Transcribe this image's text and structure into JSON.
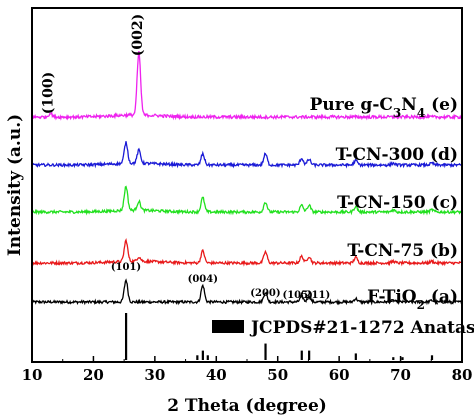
{
  "chart_data": {
    "type": "line",
    "xlabel": "2 Theta (degree)",
    "ylabel": "Intensity (a.u.)",
    "xlim": [
      10,
      80
    ],
    "x_ticks": [
      10,
      20,
      30,
      40,
      50,
      60,
      70,
      80
    ],
    "y_ticks_shown": false,
    "grid": false,
    "series": [
      {
        "name": "F-TiO2 (a)",
        "label_main": "F-TiO",
        "label_sub": "2",
        "label_tail": " (a)",
        "color": "#000000",
        "peaks": [
          [
            25.3,
            1.0
          ],
          [
            37.8,
            0.75
          ],
          [
            48.0,
            0.42
          ],
          [
            53.9,
            0.25
          ],
          [
            55.1,
            0.25
          ],
          [
            62.7,
            0.15
          ],
          [
            68.8,
            0.07
          ],
          [
            75.1,
            0.07
          ]
        ]
      },
      {
        "name": "T-CN-75 (b)",
        "label_main": "T-CN-75 (b)",
        "color": "#e8191a",
        "peaks": [
          [
            25.3,
            0.95
          ],
          [
            27.4,
            0.2
          ],
          [
            37.8,
            0.55
          ],
          [
            48.0,
            0.5
          ],
          [
            53.9,
            0.3
          ],
          [
            55.1,
            0.3
          ],
          [
            62.7,
            0.25
          ],
          [
            68.8,
            0.08
          ],
          [
            75.1,
            0.08
          ]
        ]
      },
      {
        "name": "T-CN-150 (c)",
        "label_main": "T-CN-150 (c)",
        "color": "#22e01f",
        "peaks": [
          [
            25.3,
            1.1
          ],
          [
            27.4,
            0.4
          ],
          [
            37.8,
            0.65
          ],
          [
            48.0,
            0.45
          ],
          [
            53.9,
            0.3
          ],
          [
            55.1,
            0.3
          ],
          [
            62.7,
            0.25
          ],
          [
            68.8,
            0.1
          ],
          [
            75.1,
            0.1
          ]
        ]
      },
      {
        "name": "T-CN-300 (d)",
        "label_main": "T-CN-300 (d)",
        "color": "#1a1ad6",
        "peaks": [
          [
            25.3,
            0.95
          ],
          [
            27.4,
            0.6
          ],
          [
            37.8,
            0.5
          ],
          [
            48.0,
            0.5
          ],
          [
            53.9,
            0.3
          ],
          [
            55.1,
            0.25
          ],
          [
            62.7,
            0.2
          ],
          [
            68.8,
            0.08
          ],
          [
            75.1,
            0.08
          ]
        ]
      },
      {
        "name": "Pure g-C3N4 (e)",
        "label_main": "Pure g-C",
        "label_sub": "3",
        "label_mid": "N",
        "label_sub2": "4",
        "label_tail": " (e)",
        "color": "#ee22ee",
        "peaks": [
          [
            13.0,
            0.15
          ],
          [
            27.4,
            2.5
          ]
        ]
      }
    ],
    "reference": {
      "name": "JCPDS#21-1272 Anatase",
      "lines": [
        [
          25.3,
          1.0
        ],
        [
          36.9,
          0.1
        ],
        [
          37.8,
          0.2
        ],
        [
          38.6,
          0.1
        ],
        [
          48.0,
          0.35
        ],
        [
          53.9,
          0.2
        ],
        [
          55.1,
          0.2
        ],
        [
          62.7,
          0.14
        ],
        [
          68.8,
          0.06
        ],
        [
          70.3,
          0.06
        ],
        [
          75.1,
          0.1
        ]
      ]
    },
    "annotations": {
      "g_c3n4": [
        {
          "text": "(100)",
          "x": 13.0
        },
        {
          "text": "(002)",
          "x": 27.4
        }
      ],
      "anatase": [
        {
          "text": "(101)",
          "x": 25.3
        },
        {
          "text": "(004)",
          "x": 37.8
        },
        {
          "text": "(200)",
          "x": 48.0
        },
        {
          "text": "(105)",
          "x": 53.9
        },
        {
          "text": "(211)",
          "x": 55.1
        }
      ]
    }
  }
}
